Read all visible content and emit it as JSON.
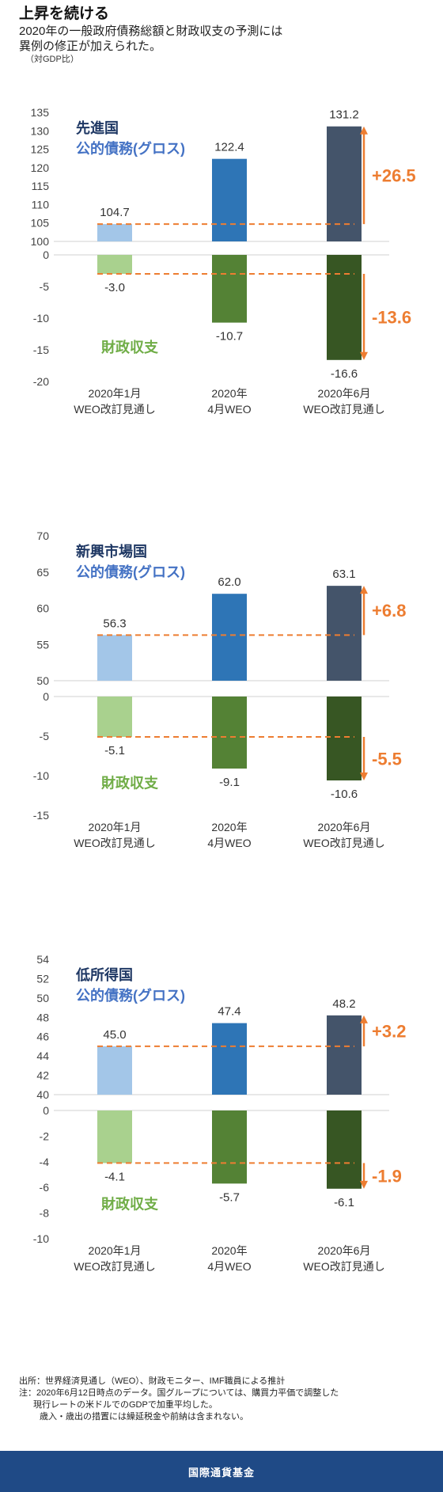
{
  "header": {
    "title": "上昇を続ける",
    "subtitle_1": "2020年の一般政府債務総額と財政収支の予測には",
    "subtitle_2": "異例の修正が加えられた。",
    "unit": "（対GDP比）"
  },
  "colors": {
    "debt": [
      "#a3c6e8",
      "#2e75b6",
      "#44546a"
    ],
    "balance": [
      "#a9d18e",
      "#548235",
      "#375623"
    ],
    "arrow": "#ed7d31",
    "debt_label": "#1f3864",
    "debt_sub_label": "#4472c4",
    "balance_label": "#70ad47"
  },
  "chart_data": [
    {
      "type": "bar",
      "group": "先進国",
      "debt_label": "公的債務(グロス)",
      "balance_label": "財政収支",
      "categories": [
        [
          "2020年1月",
          "WEO改訂見通し"
        ],
        [
          "2020年",
          "4月WEO"
        ],
        [
          "2020年6月",
          "WEO改訂見通し"
        ]
      ],
      "debt": {
        "values": [
          104.7,
          122.4,
          131.2
        ],
        "labels": [
          "104.7",
          "122.4",
          "131.2"
        ],
        "ylim": [
          100,
          135
        ],
        "ticks": [
          100,
          105,
          110,
          115,
          120,
          125,
          130,
          135
        ],
        "change": "+26.5"
      },
      "balance": {
        "values": [
          -3.0,
          -10.7,
          -16.6
        ],
        "labels": [
          "-3.0",
          "-10.7",
          "-16.6"
        ],
        "ylim": [
          -20,
          0
        ],
        "ticks": [
          0,
          -5,
          -10,
          -15,
          -20
        ],
        "change": "-13.6"
      }
    },
    {
      "type": "bar",
      "group": "新興市場国",
      "debt_label": "公的債務(グロス)",
      "balance_label": "財政収支",
      "categories": [
        [
          "2020年1月",
          "WEO改訂見通し"
        ],
        [
          "2020年",
          "4月WEO"
        ],
        [
          "2020年6月",
          "WEO改訂見通し"
        ]
      ],
      "debt": {
        "values": [
          56.3,
          62.0,
          63.1
        ],
        "labels": [
          "56.3",
          "62.0",
          "63.1"
        ],
        "ylim": [
          50,
          70
        ],
        "ticks": [
          50,
          55,
          60,
          65,
          70
        ],
        "change": "+6.8"
      },
      "balance": {
        "values": [
          -5.1,
          -9.1,
          -10.6
        ],
        "labels": [
          "-5.1",
          "-9.1",
          "-10.6"
        ],
        "ylim": [
          -15,
          0
        ],
        "ticks": [
          0,
          -5,
          -10,
          -15
        ],
        "change": "-5.5"
      }
    },
    {
      "type": "bar",
      "group": "低所得国",
      "debt_label": "公的債務(グロス)",
      "balance_label": "財政収支",
      "categories": [
        [
          "2020年1月",
          "WEO改訂見通し"
        ],
        [
          "2020年",
          "4月WEO"
        ],
        [
          "2020年6月",
          "WEO改訂見通し"
        ]
      ],
      "debt": {
        "values": [
          45.0,
          47.4,
          48.2
        ],
        "labels": [
          "45.0",
          "47.4",
          "48.2"
        ],
        "ylim": [
          40,
          54
        ],
        "ticks": [
          40,
          42,
          44,
          46,
          48,
          50,
          52,
          54
        ],
        "change": "+3.2"
      },
      "balance": {
        "values": [
          -4.1,
          -5.7,
          -6.1
        ],
        "labels": [
          "-4.1",
          "-5.7",
          "-6.1"
        ],
        "ylim": [
          -10,
          0
        ],
        "ticks": [
          0,
          -2,
          -4,
          -6,
          -8,
          -10
        ],
        "change": "-1.9"
      }
    }
  ],
  "notes": {
    "source": "出所：世界経済見通し（WEO）、財政モニター、IMF職員による推計",
    "note_1": "注：2020年6月12日時点のデータ。国グループについては、購買力平価で調整した",
    "note_2": "現行レートの米ドルでのGDPで加重平均した。",
    "note_3": "歳入・歳出の措置には繰延税金や前納は含まれない。"
  },
  "footer": {
    "label": "国際通貨基金"
  }
}
